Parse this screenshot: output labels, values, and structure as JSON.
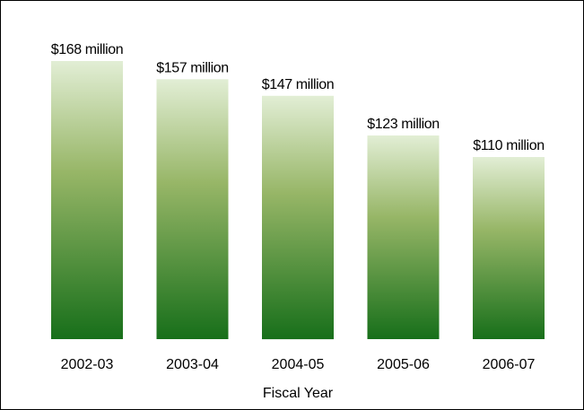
{
  "chart_data": {
    "type": "bar",
    "title": "",
    "xlabel": "Fiscal Year",
    "ylabel": "",
    "unit": "million dollars",
    "categories": [
      "2002-03",
      "2003-04",
      "2004-05",
      "2005-06",
      "2006-07"
    ],
    "values": [
      168,
      157,
      147,
      123,
      110
    ],
    "data_labels": [
      "$168 million",
      "$157 million",
      "$147 million",
      "$123 million",
      "$110 million"
    ],
    "ylim": [
      0,
      168
    ],
    "grid": false,
    "legend": "none",
    "colors": {
      "bar_top": "#e2eed5",
      "bar_mid": "#97b667",
      "bar_bottom": "#176f1a",
      "border": "#000000"
    }
  }
}
